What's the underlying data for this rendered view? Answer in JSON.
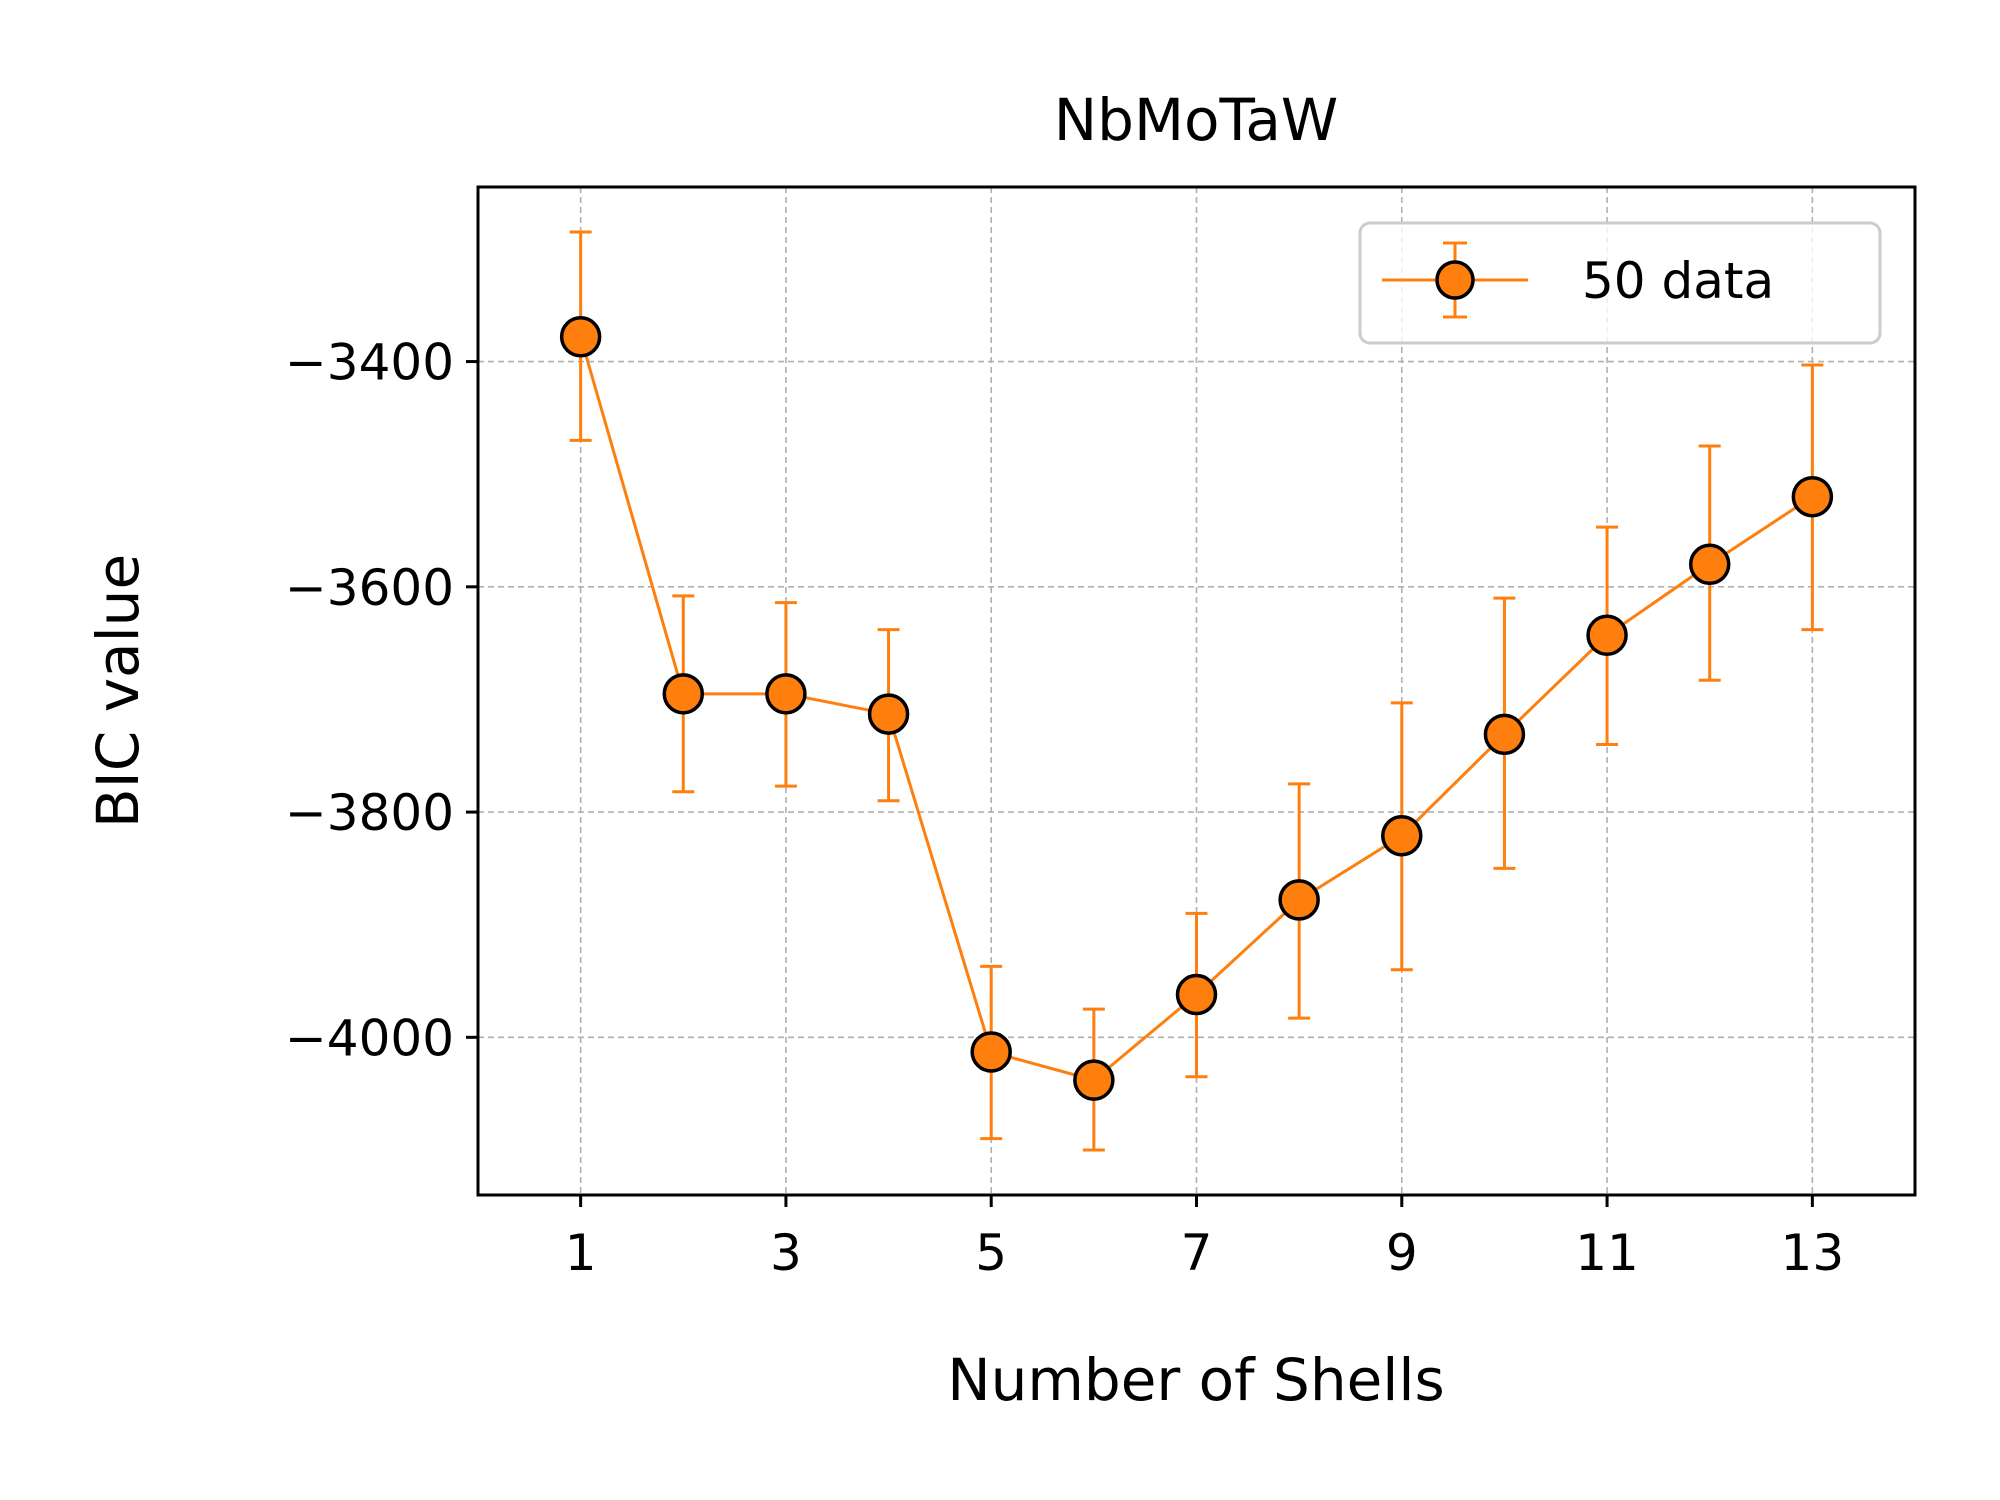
{
  "chart_data": {
    "type": "line",
    "title": "NbMoTaW",
    "xlabel": "Number of Shells",
    "ylabel": "BIC value",
    "xlim": [
      0,
      14
    ],
    "ylim": [
      -4140,
      -3245
    ],
    "grid": true,
    "legend_position": "top-right",
    "xticks": [
      1,
      3,
      5,
      7,
      9,
      11,
      13
    ],
    "xtick_labels": [
      "1",
      "3",
      "5",
      "7",
      "9",
      "11",
      "13"
    ],
    "yticks": [
      -4000,
      -3800,
      -3600,
      -3400
    ],
    "ytick_labels": [
      "−4000",
      "−3800",
      "−3600",
      "−3400"
    ],
    "series": [
      {
        "name": "50 data",
        "color": "#ff7f0e",
        "marker_edge_color": "#000000",
        "x": [
          1,
          2,
          3,
          4,
          5,
          6,
          7,
          8,
          9,
          10,
          11,
          12,
          13
        ],
        "y": [
          -3378,
          -3695,
          -3695,
          -3713,
          -4013,
          -4038,
          -3962,
          -3878,
          -3821,
          -3731,
          -3643,
          -3580,
          -3520
        ],
        "err_low": [
          -3470,
          -3782,
          -3777,
          -3790,
          -4090,
          -4100,
          -4035,
          -3983,
          -3940,
          -3850,
          -3740,
          -3683,
          -3638
        ],
        "err_high": [
          -3285,
          -3608,
          -3614,
          -3638,
          -3937,
          -3975,
          -3890,
          -3775,
          -3703,
          -3610,
          -3547,
          -3475,
          -3403
        ]
      }
    ]
  }
}
